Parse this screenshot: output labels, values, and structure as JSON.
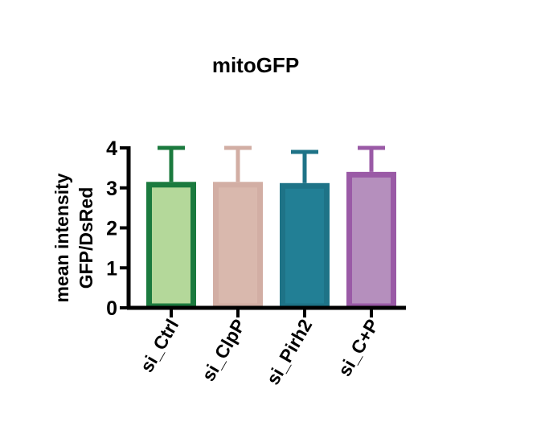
{
  "chart_data": {
    "type": "bar",
    "title": "mitoGFP",
    "ylabel_lines": [
      "mean intensity",
      "GFP/DsRed"
    ],
    "xlabel": "",
    "categories": [
      "si_Ctrl",
      "si_ClpP",
      "si_Pirh2",
      "si_C+P"
    ],
    "values": [
      3.15,
      3.15,
      3.12,
      3.4
    ],
    "error_upper": [
      0.85,
      0.85,
      0.78,
      0.6
    ],
    "ylim": [
      0,
      4
    ],
    "yticks": [
      0,
      1,
      2,
      3,
      4
    ],
    "grid": false,
    "legend": "none",
    "bar_colors": [
      {
        "fill": "#b4d89a",
        "edge": "#1b7a3e"
      },
      {
        "fill": "#d9b8ad",
        "edge": "#d2aea4"
      },
      {
        "fill": "#227f95",
        "edge": "#1e7387"
      },
      {
        "fill": "#b58fbd",
        "edge": "#9a5aa6"
      }
    ]
  }
}
